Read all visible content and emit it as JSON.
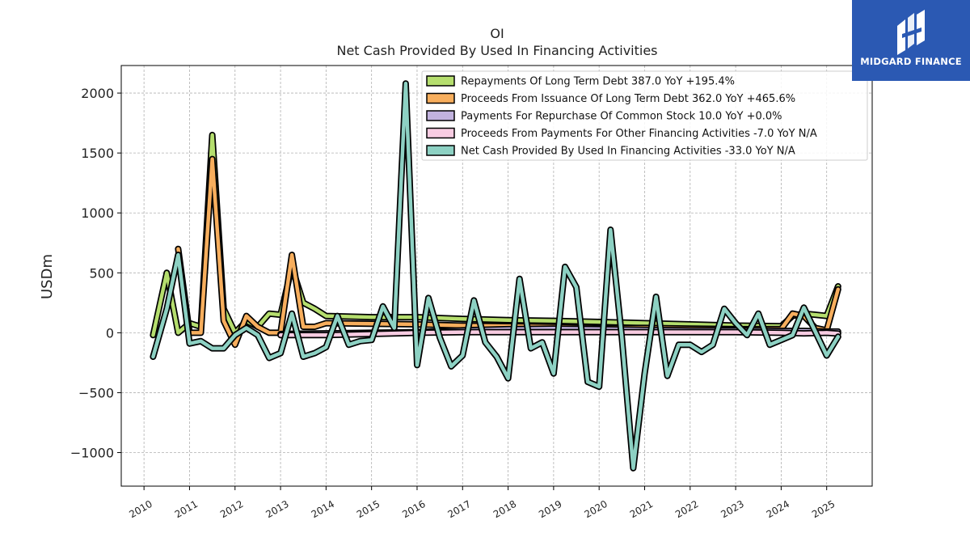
{
  "brand": {
    "name": "MIDGARD FINANCE",
    "bg_color": "#2b59b3"
  },
  "chart_data": {
    "type": "line",
    "title": "OI",
    "subtitle": "Net Cash Provided By Used In Financing Activities",
    "ylabel": "USDm",
    "xlabel": "",
    "ylim": [
      -1280,
      2230
    ],
    "xlim": [
      2009.5,
      2026.0
    ],
    "yticks": [
      -1000,
      -500,
      0,
      500,
      1000,
      1500,
      2000
    ],
    "ytick_labels": [
      "−1000",
      "−500",
      "0",
      "500",
      "1000",
      "1500",
      "2000"
    ],
    "xticks": [
      2010,
      2011,
      2012,
      2013,
      2014,
      2015,
      2016,
      2017,
      2018,
      2019,
      2020,
      2021,
      2022,
      2023,
      2024,
      2025
    ],
    "xtick_labels": [
      "2010",
      "2011",
      "2012",
      "2013",
      "2014",
      "2015",
      "2016",
      "2017",
      "2018",
      "2019",
      "2020",
      "2021",
      "2022",
      "2023",
      "2024",
      "2025"
    ],
    "grid": true,
    "legend_position": "top-right",
    "series": [
      {
        "name": "Repayments Of Long Term Debt  387.0 YoY +195.4%",
        "color": "#b5de6e",
        "points": [
          [
            2010.2,
            -20
          ],
          [
            2010.5,
            500
          ],
          [
            2010.75,
            0
          ],
          [
            2011.0,
            80
          ],
          [
            2011.25,
            50
          ],
          [
            2011.5,
            1650
          ],
          [
            2011.75,
            200
          ],
          [
            2012.0,
            0
          ],
          [
            2012.25,
            100
          ],
          [
            2012.5,
            50
          ],
          [
            2012.75,
            160
          ],
          [
            2013.0,
            150
          ],
          [
            2013.25,
            550
          ],
          [
            2013.5,
            250
          ],
          [
            2013.75,
            200
          ],
          [
            2014.0,
            140
          ],
          [
            2015.0,
            130
          ],
          [
            2016.0,
            130
          ],
          [
            2017.0,
            115
          ],
          [
            2018.0,
            105
          ],
          [
            2019.0,
            100
          ],
          [
            2020.0,
            90
          ],
          [
            2021.0,
            80
          ],
          [
            2022.0,
            70
          ],
          [
            2023.0,
            60
          ],
          [
            2024.0,
            55
          ],
          [
            2024.25,
            140
          ],
          [
            2024.5,
            160
          ],
          [
            2024.75,
            150
          ],
          [
            2025.0,
            140
          ],
          [
            2025.25,
            387
          ]
        ]
      },
      {
        "name": "Proceeds From Issuance Of Long Term Debt  362.0 YoY +465.6%",
        "color": "#f7ae5d",
        "points": [
          [
            2010.75,
            700
          ],
          [
            2011.0,
            0
          ],
          [
            2011.25,
            0
          ],
          [
            2011.5,
            1450
          ],
          [
            2011.75,
            100
          ],
          [
            2012.0,
            -100
          ],
          [
            2012.25,
            140
          ],
          [
            2012.5,
            50
          ],
          [
            2012.75,
            0
          ],
          [
            2013.0,
            0
          ],
          [
            2013.25,
            650
          ],
          [
            2013.5,
            50
          ],
          [
            2013.75,
            50
          ],
          [
            2014.0,
            80
          ],
          [
            2015.0,
            75
          ],
          [
            2016.0,
            70
          ],
          [
            2017.0,
            60
          ],
          [
            2018.0,
            55
          ],
          [
            2019.0,
            50
          ],
          [
            2020.0,
            40
          ],
          [
            2021.0,
            40
          ],
          [
            2022.0,
            35
          ],
          [
            2023.0,
            30
          ],
          [
            2024.0,
            30
          ],
          [
            2024.25,
            160
          ],
          [
            2024.5,
            140
          ],
          [
            2024.75,
            40
          ],
          [
            2025.0,
            20
          ],
          [
            2025.25,
            362
          ]
        ]
      },
      {
        "name": "Payments For Repurchase Of Common Stock  10.0 YoY +0.0%",
        "color": "#c1b2de",
        "points": [
          [
            2013.0,
            -10
          ],
          [
            2014.0,
            -5
          ],
          [
            2015.0,
            0
          ],
          [
            2016.0,
            5
          ],
          [
            2017.0,
            20
          ],
          [
            2018.0,
            30
          ],
          [
            2019.0,
            35
          ],
          [
            2020.0,
            30
          ],
          [
            2021.0,
            25
          ],
          [
            2022.0,
            20
          ],
          [
            2023.0,
            20
          ],
          [
            2024.0,
            15
          ],
          [
            2024.5,
            15
          ],
          [
            2025.0,
            10
          ],
          [
            2025.25,
            10
          ]
        ]
      },
      {
        "name": "Proceeds From Payments For Other Financing Activities  -7.0 YoY N/A",
        "color": "#f8cce2",
        "points": [
          [
            2013.0,
            -20
          ],
          [
            2014.0,
            -20
          ],
          [
            2015.0,
            -10
          ],
          [
            2016.0,
            0
          ],
          [
            2017.0,
            5
          ],
          [
            2018.0,
            5
          ],
          [
            2019.0,
            5
          ],
          [
            2020.0,
            5
          ],
          [
            2021.0,
            5
          ],
          [
            2022.0,
            5
          ],
          [
            2023.0,
            5
          ],
          [
            2024.0,
            0
          ],
          [
            2024.5,
            -5
          ],
          [
            2025.0,
            0
          ],
          [
            2025.25,
            -7
          ]
        ]
      },
      {
        "name": "Net Cash Provided By Used In Financing Activities  -33.0 YoY N/A",
        "color": "#8dd1c3",
        "points": [
          [
            2010.2,
            -200
          ],
          [
            2010.5,
            200
          ],
          [
            2010.75,
            650
          ],
          [
            2011.0,
            -90
          ],
          [
            2011.25,
            -70
          ],
          [
            2011.5,
            -130
          ],
          [
            2011.75,
            -130
          ],
          [
            2012.0,
            -20
          ],
          [
            2012.25,
            40
          ],
          [
            2012.5,
            -20
          ],
          [
            2012.75,
            -210
          ],
          [
            2013.0,
            -170
          ],
          [
            2013.25,
            160
          ],
          [
            2013.5,
            -200
          ],
          [
            2013.75,
            -170
          ],
          [
            2014.0,
            -120
          ],
          [
            2014.25,
            140
          ],
          [
            2014.5,
            -100
          ],
          [
            2014.75,
            -70
          ],
          [
            2015.0,
            -60
          ],
          [
            2015.25,
            220
          ],
          [
            2015.5,
            40
          ],
          [
            2015.75,
            2080
          ],
          [
            2016.0,
            -270
          ],
          [
            2016.25,
            290
          ],
          [
            2016.5,
            -40
          ],
          [
            2016.75,
            -280
          ],
          [
            2017.0,
            -190
          ],
          [
            2017.25,
            270
          ],
          [
            2017.5,
            -80
          ],
          [
            2017.75,
            -200
          ],
          [
            2018.0,
            -380
          ],
          [
            2018.25,
            450
          ],
          [
            2018.5,
            -130
          ],
          [
            2018.75,
            -80
          ],
          [
            2019.0,
            -340
          ],
          [
            2019.25,
            550
          ],
          [
            2019.5,
            380
          ],
          [
            2019.75,
            -410
          ],
          [
            2020.0,
            -450
          ],
          [
            2020.25,
            860
          ],
          [
            2020.5,
            -40
          ],
          [
            2020.75,
            -1130
          ],
          [
            2021.0,
            -340
          ],
          [
            2021.25,
            300
          ],
          [
            2021.5,
            -360
          ],
          [
            2021.75,
            -100
          ],
          [
            2022.0,
            -100
          ],
          [
            2022.25,
            -160
          ],
          [
            2022.5,
            -100
          ],
          [
            2022.75,
            200
          ],
          [
            2023.0,
            80
          ],
          [
            2023.25,
            -20
          ],
          [
            2023.5,
            160
          ],
          [
            2023.75,
            -100
          ],
          [
            2024.0,
            -60
          ],
          [
            2024.25,
            -20
          ],
          [
            2024.5,
            210
          ],
          [
            2024.75,
            10
          ],
          [
            2025.0,
            -190
          ],
          [
            2025.25,
            -33
          ]
        ]
      }
    ]
  }
}
